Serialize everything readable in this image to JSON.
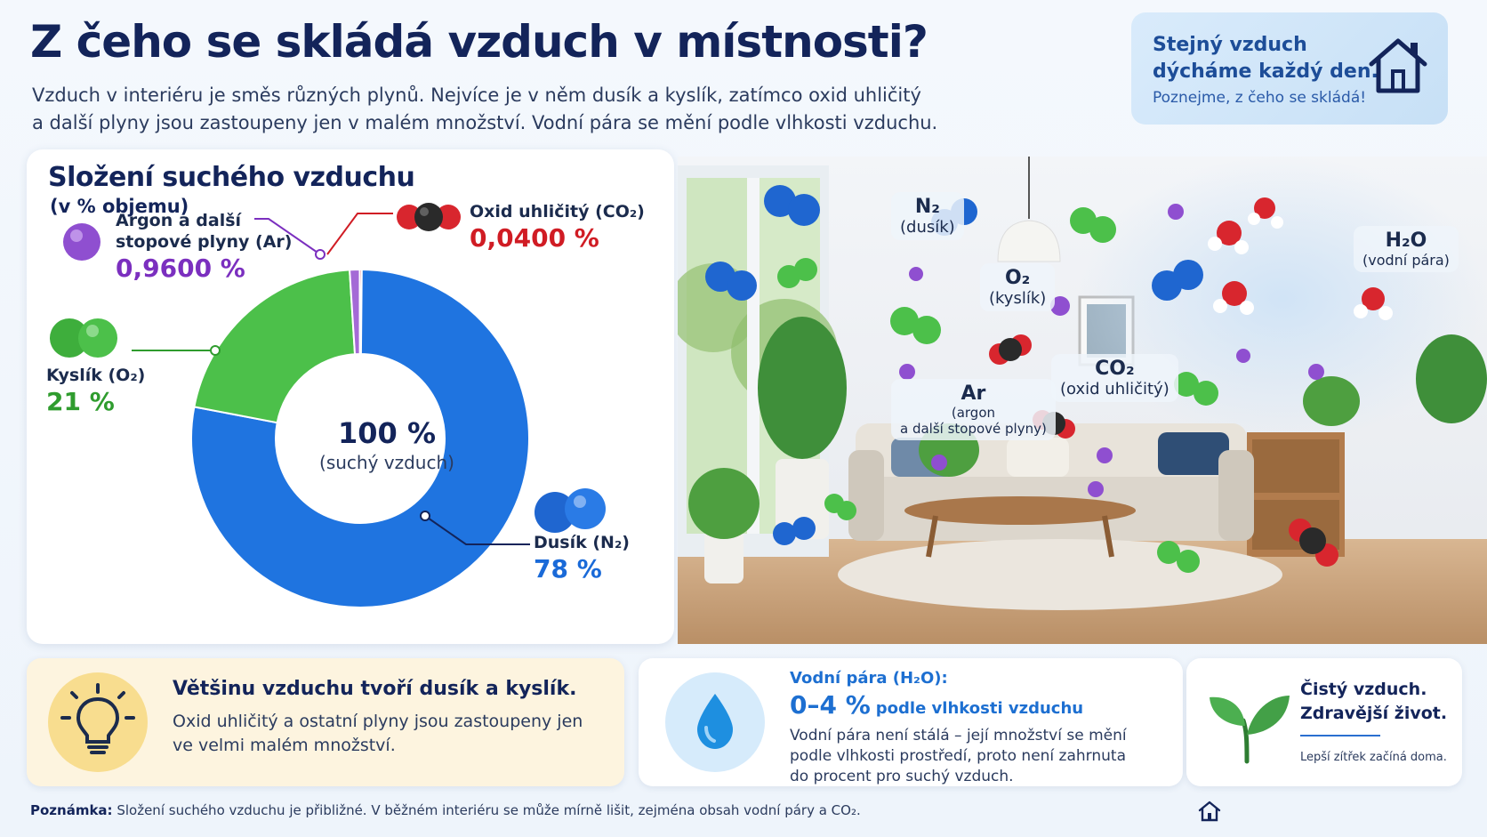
{
  "header": {
    "title": "Z čeho se skládá vzduch v místnosti?",
    "intro_line1": "Vzduch v interiéru je směs různých plynů. Nejvíce je v něm dusík a kyslík, zatímco oxid uhličitý",
    "intro_line2": "a další plyny jsou zastoupeny jen v malém množství. Vodní pára se mění podle vlhkosti vzduchu."
  },
  "banner": {
    "line1": "Stejný vzduch",
    "line2": "dýcháme každý den.",
    "line3": "Poznejme, z čeho se skládá!",
    "icon": "house-icon"
  },
  "chart_data": {
    "type": "pie",
    "title": "Složení suchého vzduchu",
    "subtitle": "(v % objemu)",
    "center_value": "100 %",
    "center_label": "(suchý vzduch)",
    "slices": [
      {
        "name": "Dusík (N₂)",
        "value": 78,
        "label": "78 %",
        "color": "#1f74e0"
      },
      {
        "name": "Kyslík (O₂)",
        "value": 21,
        "label": "21 %",
        "color": "#4cc04a"
      },
      {
        "name": "Argon a další stopové plyny (Ar)",
        "value": 0.96,
        "label": "0,9600 %",
        "color": "#a46ad6"
      },
      {
        "name": "Oxid uhličitý (CO₂)",
        "value": 0.04,
        "label": "0,0400 %",
        "color": "#d8262e"
      }
    ]
  },
  "labels": {
    "argon_line1": "Argon a další",
    "argon_line2": "stopové plyny (Ar)",
    "argon_value": "0,9600 %",
    "co2_name": "Oxid uhličitý (CO₂)",
    "co2_value": "0,0400 %",
    "o2_name": "Kyslík (O₂)",
    "o2_value": "21 %",
    "n2_name": "Dusík (N₂)",
    "n2_value": "78 %"
  },
  "colors": {
    "nitrogen": "#1f74e0",
    "oxygen": "#4cc04a",
    "argon": "#a46ad6",
    "co2": "#d8262e",
    "title": "#13245a"
  },
  "scene": {
    "tags": [
      {
        "formula": "N₂",
        "name": "(dusík)"
      },
      {
        "formula": "O₂",
        "name": "(kyslík)"
      },
      {
        "formula": "CO₂",
        "name": "(oxid uhličitý)"
      },
      {
        "formula": "Ar",
        "name": "(argon",
        "name2": "a další stopové plyny)"
      },
      {
        "formula": "H₂O",
        "name": "(vodní pára)"
      }
    ]
  },
  "cards": {
    "c1": {
      "icon": "lightbulb-icon",
      "heading": "Většinu vzduchu tvoří dusík a kyslík.",
      "body_line1": "Oxid uhličitý a ostatní plyny jsou zastoupeny jen",
      "body_line2": "ve velmi malém množství."
    },
    "c2": {
      "icon": "water-drop-icon",
      "heading": "Vodní pára (H₂O):",
      "big": "0–4 %",
      "big_suffix": "podle vlhkosti vzduchu",
      "body_line1": "Vodní pára není stálá – její množství se mění",
      "body_line2": "podle vlhkosti prostředí, proto není zahrnuta",
      "body_line3": "do procent pro suchý vzduch."
    },
    "c3": {
      "icon": "sprout-icon",
      "line1": "Čistý vzduch.",
      "line2": "Zdravější život.",
      "foot": "Lepší zítřek začíná doma."
    }
  },
  "note": {
    "label": "Poznámka:",
    "text": "Složení suchého vzduchu je přibližné. V běžném interiéru se může mírně lišit, zejména obsah vodní páry a CO₂."
  }
}
